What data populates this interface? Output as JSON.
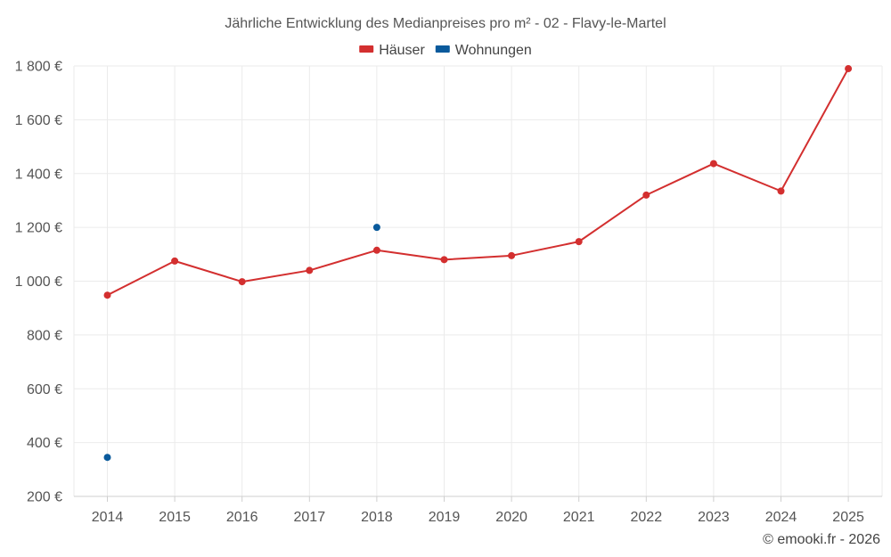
{
  "chart_data": {
    "type": "line",
    "title": "Jährliche Entwicklung des Medianpreises pro m² - 02 - Flavy-le-Martel",
    "categories": [
      "2014",
      "2015",
      "2016",
      "2017",
      "2018",
      "2019",
      "2020",
      "2021",
      "2022",
      "2023",
      "2024",
      "2025"
    ],
    "ylim": [
      200,
      1800
    ],
    "yticks": [
      200,
      400,
      600,
      800,
      1000,
      1200,
      1400,
      1600,
      1800
    ],
    "ytick_labels": [
      "200 €",
      "400 €",
      "600 €",
      "800 €",
      "1 000 €",
      "1 200 €",
      "1 400 €",
      "1 600 €",
      "1 800 €"
    ],
    "xlabel": "",
    "ylabel": "",
    "grid": true,
    "legend_position": "top-center",
    "series": [
      {
        "name": "Häuser",
        "color": "#d32f2f",
        "values": [
          948,
          1075,
          998,
          1040,
          1115,
          1080,
          1095,
          1147,
          1320,
          1437,
          1335,
          1790
        ]
      },
      {
        "name": "Wohnungen",
        "color": "#0a5a9c",
        "values": [
          345,
          null,
          null,
          null,
          1200,
          null,
          null,
          null,
          null,
          null,
          null,
          null
        ]
      }
    ],
    "credit": "© emooki.fr - 2026"
  }
}
